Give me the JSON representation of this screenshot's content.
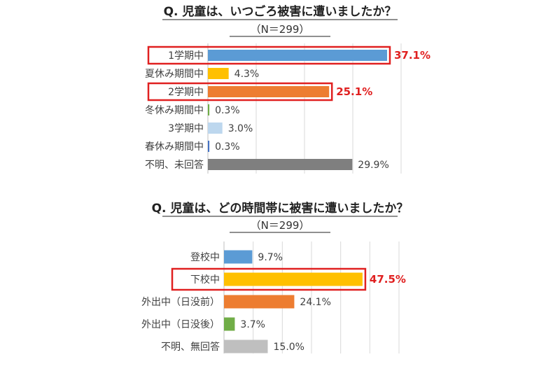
{
  "chart_data": [
    {
      "type": "bar",
      "orientation": "horizontal",
      "title": "Q. 児童は、いつごろ被害に遭いましたか？",
      "subtitle": "（N＝299）",
      "categories": [
        "1学期中",
        "夏休み期間中",
        "2学期中",
        "冬休み期間中",
        "3学期中",
        "春休み期間中",
        "不明、未回答"
      ],
      "values": [
        37.1,
        4.3,
        25.1,
        0.3,
        3.0,
        0.3,
        29.9
      ],
      "value_labels": [
        "37.1%",
        "4.3%",
        "25.1%",
        "0.3%",
        "3.0%",
        "0.3%",
        "29.9%"
      ],
      "colors": [
        "#5b9bd5",
        "#ffc000",
        "#ed7d31",
        "#70ad47",
        "#bdd7ee",
        "#4472c4",
        "#7f7f7f"
      ],
      "highlighted": [
        0,
        2
      ],
      "highlight_color": "#e02020",
      "xlim": [
        0,
        40
      ],
      "grid": true
    },
    {
      "type": "bar",
      "orientation": "horizontal",
      "title": "Q. 児童は、どの時間帯に被害に遭いましたか？",
      "subtitle": "（N＝299）",
      "categories": [
        "登校中",
        "下校中",
        "外出中（日没前）",
        "外出中（日没後）",
        "不明、無回答"
      ],
      "values": [
        9.7,
        47.5,
        24.1,
        3.7,
        15.0
      ],
      "value_labels": [
        "9.7%",
        "47.5%",
        "24.1%",
        "3.7%",
        "15.0%"
      ],
      "colors": [
        "#5b9bd5",
        "#ffc000",
        "#ed7d31",
        "#70ad47",
        "#bfbfbf"
      ],
      "highlighted": [
        1
      ],
      "highlight_color": "#e02020",
      "xlim": [
        0,
        60
      ],
      "grid": true
    }
  ]
}
